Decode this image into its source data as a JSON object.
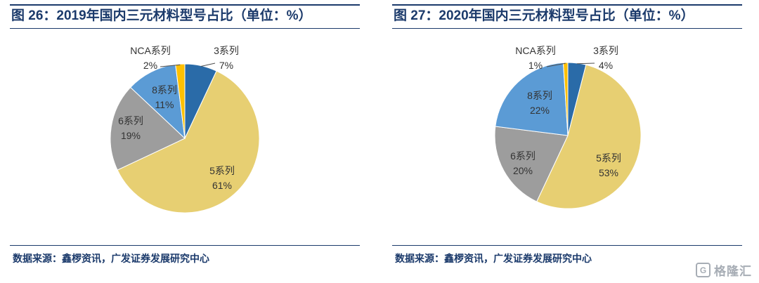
{
  "chart_data": [
    {
      "type": "pie",
      "title": "图 26：2019年国内三元材料型号占比（单位：%）",
      "categories": [
        "3系列",
        "5系列",
        "6系列",
        "8系列",
        "NCA系列"
      ],
      "values": [
        7,
        61,
        19,
        11,
        2
      ],
      "colors": [
        "#2A6BA8",
        "#E7CF72",
        "#9D9D9D",
        "#5B9BD5",
        "#FFC000"
      ],
      "label_format": "{name} {value}%",
      "start_angle_deg": 0,
      "direction": "clockwise",
      "legend": "none",
      "source": "数据来源：鑫椤资讯，广发证券发展研究中心"
    },
    {
      "type": "pie",
      "title": "图 27：2020年国内三元材料型号占比（单位：%）",
      "categories": [
        "3系列",
        "5系列",
        "6系列",
        "8系列",
        "NCA系列"
      ],
      "values": [
        4,
        53,
        20,
        22,
        1
      ],
      "colors": [
        "#2A6BA8",
        "#E7CF72",
        "#9D9D9D",
        "#5B9BD5",
        "#FFC000"
      ],
      "label_format": "{name} {value}%",
      "start_angle_deg": 0,
      "direction": "clockwise",
      "legend": "none",
      "source": "数据来源：鑫椤资讯，广发证券发展研究中心"
    }
  ],
  "watermark": {
    "logo": "G",
    "text": "格隆汇"
  },
  "style": {
    "accent_navy": "#1B3A6B",
    "label_color": "#333333"
  }
}
